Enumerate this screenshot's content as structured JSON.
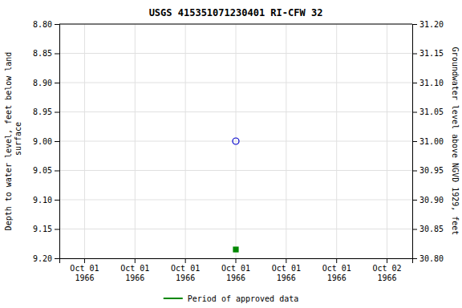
{
  "chart_data": {
    "type": "scatter",
    "title": "USGS 415351071230401 RI-CFW   32",
    "y_label": "Depth to water level, feet below land\n surface",
    "y2_label": "Groundwater level above NGVD 1929, feet",
    "categories": [
      "Oct 01\n1966",
      "Oct 01\n1966",
      "Oct 01\n1966",
      "Oct 01\n1966",
      "Oct 01\n1966",
      "Oct 01\n1966",
      "Oct 02\n1966"
    ],
    "series": [
      {
        "color": "#0000cc",
        "marker": "circle-open",
        "values": [
          null,
          null,
          null,
          9.0,
          null,
          null,
          null
        ]
      },
      {
        "name": "Period of approved data",
        "color": "#008800",
        "marker": "square",
        "values": [
          null,
          null,
          null,
          9.185,
          null,
          null,
          null
        ]
      }
    ],
    "ylim": [
      9.2,
      8.8
    ],
    "yticks": [
      {
        "value": 8.8,
        "label": "8.80"
      },
      8.85,
      {
        "value": 8.9,
        "label": "8.90"
      },
      8.95,
      {
        "value": 9.0,
        "label": "9.00"
      },
      9.05,
      {
        "value": 9.1,
        "label": "9.10"
      },
      9.15,
      {
        "value": 9.2,
        "label": "9.20"
      }
    ],
    "y2lim": [
      30.8,
      31.2
    ],
    "y2ticks": [
      {
        "value": 31.2,
        "label": "31.20"
      },
      31.15,
      {
        "value": 31.1,
        "label": "31.10"
      },
      31.05,
      {
        "value": 31.0,
        "label": "31.00"
      },
      30.95,
      {
        "value": 30.9,
        "label": "30.90"
      },
      30.85,
      {
        "value": 30.8,
        "label": "30.80"
      }
    ],
    "grid": true,
    "legend": "bottom"
  }
}
